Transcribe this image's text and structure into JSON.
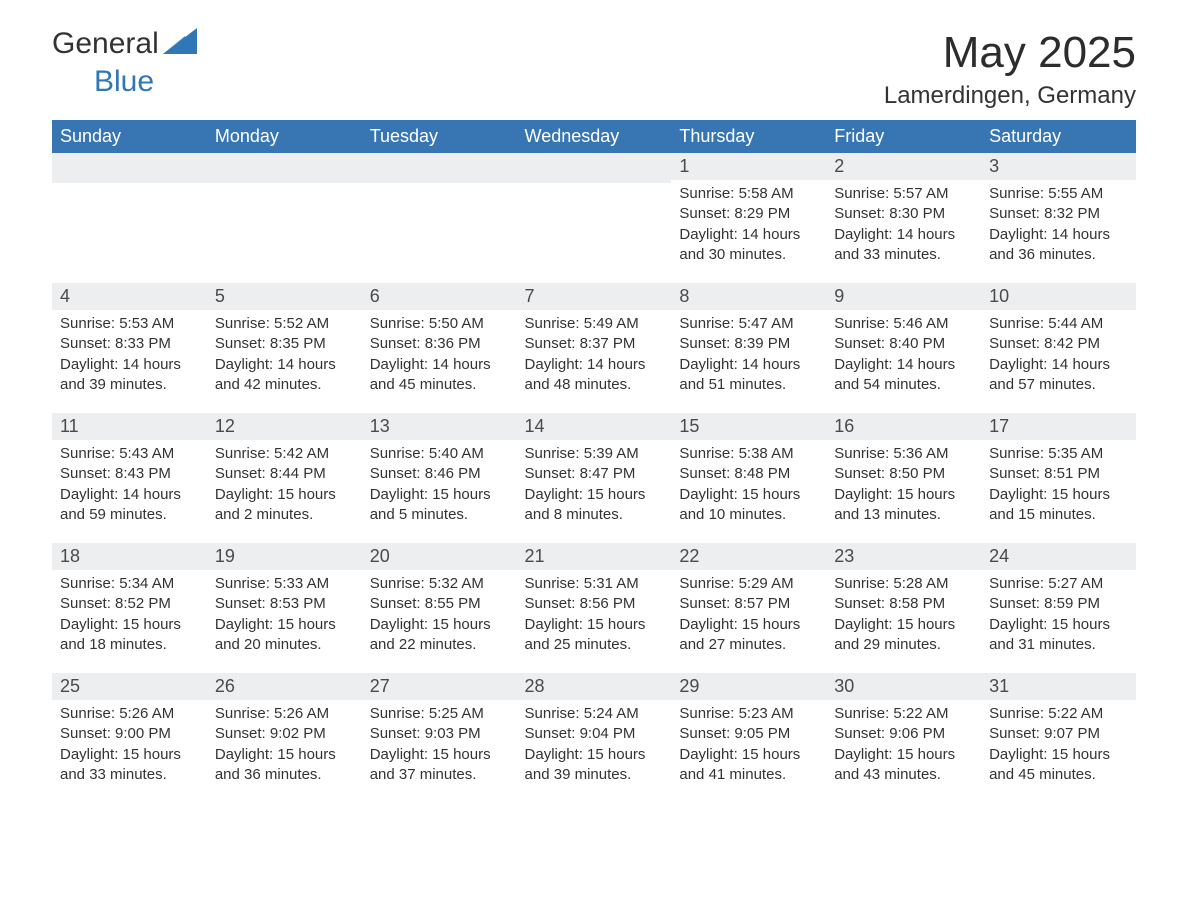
{
  "brand": {
    "word1": "General",
    "word2": "Blue",
    "primary_color": "#2f77b6",
    "text_color": "#333333"
  },
  "title": "May 2025",
  "location": "Lamerdingen, Germany",
  "header_bg": "#3776b3",
  "header_fg": "#ffffff",
  "daynum_bg": "#eceeef",
  "row_border_color": "#2f70ac",
  "background_color": "#ffffff",
  "text_color": "#333333",
  "font_family": "Arial",
  "days_of_week": [
    "Sunday",
    "Monday",
    "Tuesday",
    "Wednesday",
    "Thursday",
    "Friday",
    "Saturday"
  ],
  "first_weekday_index": 4,
  "cells": [
    {
      "day": 1,
      "sunrise": "5:58 AM",
      "sunset": "8:29 PM",
      "daylight": "14 hours and 30 minutes."
    },
    {
      "day": 2,
      "sunrise": "5:57 AM",
      "sunset": "8:30 PM",
      "daylight": "14 hours and 33 minutes."
    },
    {
      "day": 3,
      "sunrise": "5:55 AM",
      "sunset": "8:32 PM",
      "daylight": "14 hours and 36 minutes."
    },
    {
      "day": 4,
      "sunrise": "5:53 AM",
      "sunset": "8:33 PM",
      "daylight": "14 hours and 39 minutes."
    },
    {
      "day": 5,
      "sunrise": "5:52 AM",
      "sunset": "8:35 PM",
      "daylight": "14 hours and 42 minutes."
    },
    {
      "day": 6,
      "sunrise": "5:50 AM",
      "sunset": "8:36 PM",
      "daylight": "14 hours and 45 minutes."
    },
    {
      "day": 7,
      "sunrise": "5:49 AM",
      "sunset": "8:37 PM",
      "daylight": "14 hours and 48 minutes."
    },
    {
      "day": 8,
      "sunrise": "5:47 AM",
      "sunset": "8:39 PM",
      "daylight": "14 hours and 51 minutes."
    },
    {
      "day": 9,
      "sunrise": "5:46 AM",
      "sunset": "8:40 PM",
      "daylight": "14 hours and 54 minutes."
    },
    {
      "day": 10,
      "sunrise": "5:44 AM",
      "sunset": "8:42 PM",
      "daylight": "14 hours and 57 minutes."
    },
    {
      "day": 11,
      "sunrise": "5:43 AM",
      "sunset": "8:43 PM",
      "daylight": "14 hours and 59 minutes."
    },
    {
      "day": 12,
      "sunrise": "5:42 AM",
      "sunset": "8:44 PM",
      "daylight": "15 hours and 2 minutes."
    },
    {
      "day": 13,
      "sunrise": "5:40 AM",
      "sunset": "8:46 PM",
      "daylight": "15 hours and 5 minutes."
    },
    {
      "day": 14,
      "sunrise": "5:39 AM",
      "sunset": "8:47 PM",
      "daylight": "15 hours and 8 minutes."
    },
    {
      "day": 15,
      "sunrise": "5:38 AM",
      "sunset": "8:48 PM",
      "daylight": "15 hours and 10 minutes."
    },
    {
      "day": 16,
      "sunrise": "5:36 AM",
      "sunset": "8:50 PM",
      "daylight": "15 hours and 13 minutes."
    },
    {
      "day": 17,
      "sunrise": "5:35 AM",
      "sunset": "8:51 PM",
      "daylight": "15 hours and 15 minutes."
    },
    {
      "day": 18,
      "sunrise": "5:34 AM",
      "sunset": "8:52 PM",
      "daylight": "15 hours and 18 minutes."
    },
    {
      "day": 19,
      "sunrise": "5:33 AM",
      "sunset": "8:53 PM",
      "daylight": "15 hours and 20 minutes."
    },
    {
      "day": 20,
      "sunrise": "5:32 AM",
      "sunset": "8:55 PM",
      "daylight": "15 hours and 22 minutes."
    },
    {
      "day": 21,
      "sunrise": "5:31 AM",
      "sunset": "8:56 PM",
      "daylight": "15 hours and 25 minutes."
    },
    {
      "day": 22,
      "sunrise": "5:29 AM",
      "sunset": "8:57 PM",
      "daylight": "15 hours and 27 minutes."
    },
    {
      "day": 23,
      "sunrise": "5:28 AM",
      "sunset": "8:58 PM",
      "daylight": "15 hours and 29 minutes."
    },
    {
      "day": 24,
      "sunrise": "5:27 AM",
      "sunset": "8:59 PM",
      "daylight": "15 hours and 31 minutes."
    },
    {
      "day": 25,
      "sunrise": "5:26 AM",
      "sunset": "9:00 PM",
      "daylight": "15 hours and 33 minutes."
    },
    {
      "day": 26,
      "sunrise": "5:26 AM",
      "sunset": "9:02 PM",
      "daylight": "15 hours and 36 minutes."
    },
    {
      "day": 27,
      "sunrise": "5:25 AM",
      "sunset": "9:03 PM",
      "daylight": "15 hours and 37 minutes."
    },
    {
      "day": 28,
      "sunrise": "5:24 AM",
      "sunset": "9:04 PM",
      "daylight": "15 hours and 39 minutes."
    },
    {
      "day": 29,
      "sunrise": "5:23 AM",
      "sunset": "9:05 PM",
      "daylight": "15 hours and 41 minutes."
    },
    {
      "day": 30,
      "sunrise": "5:22 AM",
      "sunset": "9:06 PM",
      "daylight": "15 hours and 43 minutes."
    },
    {
      "day": 31,
      "sunrise": "5:22 AM",
      "sunset": "9:07 PM",
      "daylight": "15 hours and 45 minutes."
    }
  ],
  "labels": {
    "sunrise_prefix": "Sunrise: ",
    "sunset_prefix": "Sunset: ",
    "daylight_prefix": "Daylight: "
  }
}
